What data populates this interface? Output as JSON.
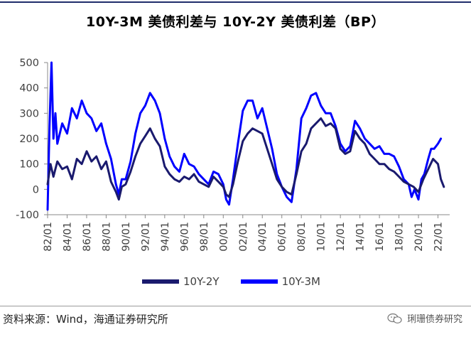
{
  "chart_data": {
    "type": "line",
    "title": "10Y-3M 美债利差与 10Y-2Y 美债利差（BP）",
    "xlabel": "",
    "ylabel": "",
    "x_ticks": [
      "82/01",
      "84/01",
      "86/01",
      "88/01",
      "90/01",
      "92/01",
      "94/01",
      "96/01",
      "98/01",
      "00/01",
      "02/01",
      "04/01",
      "06/01",
      "08/01",
      "10/01",
      "12/01",
      "14/01",
      "16/01",
      "18/01",
      "20/01",
      "22/01"
    ],
    "xlim": [
      1982.0,
      2023.2
    ],
    "ylim": [
      -100,
      500
    ],
    "y_ticks": [
      -100,
      0,
      100,
      200,
      300,
      400,
      500
    ],
    "grid": false,
    "legend_position": "bottom",
    "series": [
      {
        "name": "10Y-2Y",
        "color": "#1a1a6e",
        "x": [
          1982.0,
          1982.3,
          1982.6,
          1983.0,
          1983.5,
          1984.0,
          1984.5,
          1985.0,
          1985.5,
          1986.0,
          1986.5,
          1987.0,
          1987.5,
          1988.0,
          1988.5,
          1989.0,
          1989.3,
          1989.6,
          1990.0,
          1990.5,
          1991.0,
          1991.5,
          1992.0,
          1992.5,
          1993.0,
          1993.5,
          1994.0,
          1994.5,
          1995.0,
          1995.5,
          1996.0,
          1996.5,
          1997.0,
          1997.5,
          1998.0,
          1998.5,
          1999.0,
          1999.5,
          2000.0,
          2000.3,
          2000.6,
          2001.0,
          2001.5,
          2002.0,
          2002.5,
          2003.0,
          2003.5,
          2004.0,
          2004.5,
          2005.0,
          2005.5,
          2006.0,
          2006.5,
          2007.0,
          2007.5,
          2008.0,
          2008.5,
          2009.0,
          2009.5,
          2010.0,
          2010.5,
          2011.0,
          2011.5,
          2012.0,
          2012.5,
          2013.0,
          2013.5,
          2014.0,
          2014.5,
          2015.0,
          2015.5,
          2016.0,
          2016.5,
          2017.0,
          2017.5,
          2018.0,
          2018.5,
          2019.0,
          2019.5,
          2020.0,
          2020.5,
          2021.0,
          2021.5,
          2022.0,
          2022.3,
          2022.6
        ],
        "values": [
          20,
          100,
          50,
          110,
          80,
          90,
          40,
          120,
          100,
          150,
          110,
          130,
          80,
          110,
          30,
          -10,
          -40,
          10,
          20,
          70,
          130,
          180,
          210,
          240,
          200,
          170,
          90,
          60,
          40,
          30,
          50,
          40,
          60,
          30,
          20,
          10,
          50,
          30,
          10,
          -20,
          -30,
          20,
          110,
          190,
          220,
          240,
          230,
          220,
          160,
          100,
          40,
          10,
          -10,
          -20,
          60,
          150,
          180,
          240,
          260,
          280,
          250,
          260,
          240,
          160,
          140,
          150,
          230,
          200,
          180,
          140,
          120,
          100,
          100,
          80,
          70,
          50,
          30,
          20,
          10,
          -10,
          40,
          80,
          120,
          100,
          40,
          10
        ]
      },
      {
        "name": "10Y-3M",
        "color": "#0000ff",
        "x": [
          1982.0,
          1982.2,
          1982.4,
          1982.6,
          1982.8,
          1983.0,
          1983.5,
          1984.0,
          1984.5,
          1985.0,
          1985.5,
          1986.0,
          1986.5,
          1987.0,
          1987.5,
          1988.0,
          1988.5,
          1989.0,
          1989.3,
          1989.6,
          1990.0,
          1990.5,
          1991.0,
          1991.5,
          1992.0,
          1992.5,
          1993.0,
          1993.5,
          1994.0,
          1994.5,
          1995.0,
          1995.5,
          1996.0,
          1996.5,
          1997.0,
          1997.5,
          1998.0,
          1998.5,
          1999.0,
          1999.5,
          2000.0,
          2000.3,
          2000.6,
          2001.0,
          2001.5,
          2002.0,
          2002.5,
          2003.0,
          2003.5,
          2004.0,
          2004.5,
          2005.0,
          2005.5,
          2006.0,
          2006.5,
          2007.0,
          2007.5,
          2008.0,
          2008.5,
          2009.0,
          2009.5,
          2010.0,
          2010.5,
          2011.0,
          2011.5,
          2012.0,
          2012.5,
          2013.0,
          2013.5,
          2014.0,
          2014.5,
          2015.0,
          2015.5,
          2016.0,
          2016.5,
          2017.0,
          2017.5,
          2018.0,
          2018.5,
          2019.0,
          2019.3,
          2019.6,
          2020.0,
          2020.3,
          2020.6,
          2021.0,
          2021.3,
          2021.6,
          2022.0,
          2022.3
        ],
        "values": [
          -80,
          250,
          500,
          200,
          300,
          180,
          260,
          220,
          320,
          280,
          350,
          300,
          280,
          230,
          260,
          180,
          120,
          20,
          -20,
          40,
          40,
          110,
          220,
          300,
          330,
          380,
          350,
          300,
          200,
          130,
          90,
          70,
          140,
          100,
          90,
          60,
          40,
          20,
          70,
          60,
          20,
          -40,
          -60,
          40,
          180,
          310,
          350,
          350,
          280,
          320,
          240,
          160,
          60,
          10,
          -30,
          -50,
          80,
          280,
          320,
          370,
          380,
          330,
          300,
          300,
          250,
          180,
          150,
          170,
          270,
          240,
          200,
          180,
          160,
          170,
          140,
          140,
          130,
          90,
          40,
          20,
          -30,
          0,
          -40,
          40,
          60,
          120,
          160,
          160,
          180,
          200
        ]
      }
    ]
  },
  "legend": {
    "item1": "10Y-2Y",
    "item2": "10Y-3M"
  },
  "footer": {
    "source": "资料来源：Wind，海通证券研究所",
    "watermark": "琍珊债券研究"
  }
}
